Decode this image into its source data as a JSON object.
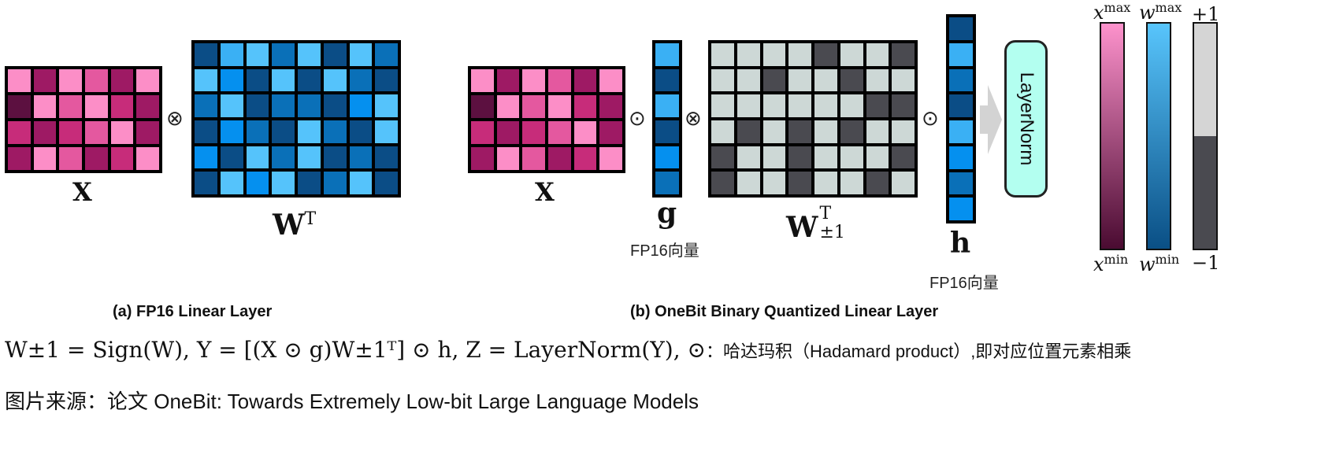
{
  "colors": {
    "pink": [
      "#fc8ec7",
      "#9e1a64",
      "#e4589f",
      "#5c1040",
      "#c72c7a"
    ],
    "blue": [
      "#0b4d86",
      "#3ab0f4",
      "#0a70b8",
      "#55c3fb",
      "#0590ef"
    ],
    "gray_light": "#cdd8d6",
    "gray_dark": "#4a4a50"
  },
  "panel_a": {
    "x_label": "X",
    "w_label": "W",
    "w_sup": "T",
    "op_symbol": "⊗",
    "caption": "(a) FP16 Linear Layer",
    "x_matrix": [
      [
        0,
        1,
        0,
        2,
        1,
        0
      ],
      [
        3,
        0,
        2,
        0,
        4,
        1
      ],
      [
        4,
        1,
        4,
        2,
        0,
        1
      ],
      [
        1,
        0,
        2,
        1,
        4,
        0
      ]
    ],
    "w_matrix": [
      [
        0,
        1,
        3,
        2,
        3,
        0,
        3,
        2
      ],
      [
        3,
        4,
        0,
        3,
        0,
        3,
        2,
        0
      ],
      [
        2,
        3,
        0,
        2,
        2,
        0,
        4,
        3
      ],
      [
        0,
        4,
        2,
        0,
        3,
        2,
        0,
        3
      ],
      [
        4,
        0,
        3,
        2,
        3,
        0,
        2,
        0
      ],
      [
        0,
        3,
        4,
        3,
        0,
        2,
        3,
        0
      ]
    ]
  },
  "panel_b": {
    "x_label": "X",
    "g_label": "g",
    "g_note": "FP16向量",
    "w_label": "W",
    "w_sup": "T",
    "w_sub": "±1",
    "h_label": "h",
    "h_note": "FP16向量",
    "hadamard_symbol": "⊙",
    "op_symbol": "⊗",
    "layernorm_label": "LayerNorm",
    "caption": "(b) OneBit Binary Quantized Linear Layer",
    "x_matrix": [
      [
        0,
        1,
        0,
        2,
        1,
        0
      ],
      [
        3,
        0,
        2,
        0,
        4,
        1
      ],
      [
        4,
        1,
        4,
        2,
        0,
        1
      ],
      [
        1,
        0,
        2,
        1,
        4,
        0
      ]
    ],
    "g_vector": [
      1,
      0,
      1,
      0,
      4,
      2
    ],
    "w_matrix": [
      [
        1,
        1,
        1,
        1,
        0,
        1,
        1,
        0
      ],
      [
        1,
        1,
        0,
        1,
        1,
        0,
        1,
        1
      ],
      [
        1,
        1,
        1,
        1,
        1,
        1,
        0,
        0
      ],
      [
        1,
        0,
        1,
        0,
        1,
        0,
        1,
        1
      ],
      [
        0,
        1,
        1,
        0,
        1,
        1,
        1,
        0
      ],
      [
        0,
        1,
        1,
        0,
        1,
        1,
        0,
        1
      ]
    ],
    "h_vector": [
      0,
      1,
      2,
      0,
      1,
      4,
      2,
      4
    ]
  },
  "legend": {
    "x_max": "x",
    "x_max_sup": "max",
    "x_min": "x",
    "x_min_sup": "min",
    "w_max": "w",
    "w_max_sup": "max",
    "w_min": "w",
    "w_min_sup": "min",
    "plus_one": "+1",
    "minus_one": "−1"
  },
  "formula": {
    "line1_math": "W±1 = Sign(W),  Y = [(X ⊙ g)W±1ᵀ] ⊙ h,  Z = LayerNorm(Y),  ⊙",
    "line1_note": "：哈达玛积（Hadamard product）,即对应位置元素相乘"
  },
  "source_note": "图片来源：论文 OneBit: Towards Extremely Low-bit Large Language Models"
}
